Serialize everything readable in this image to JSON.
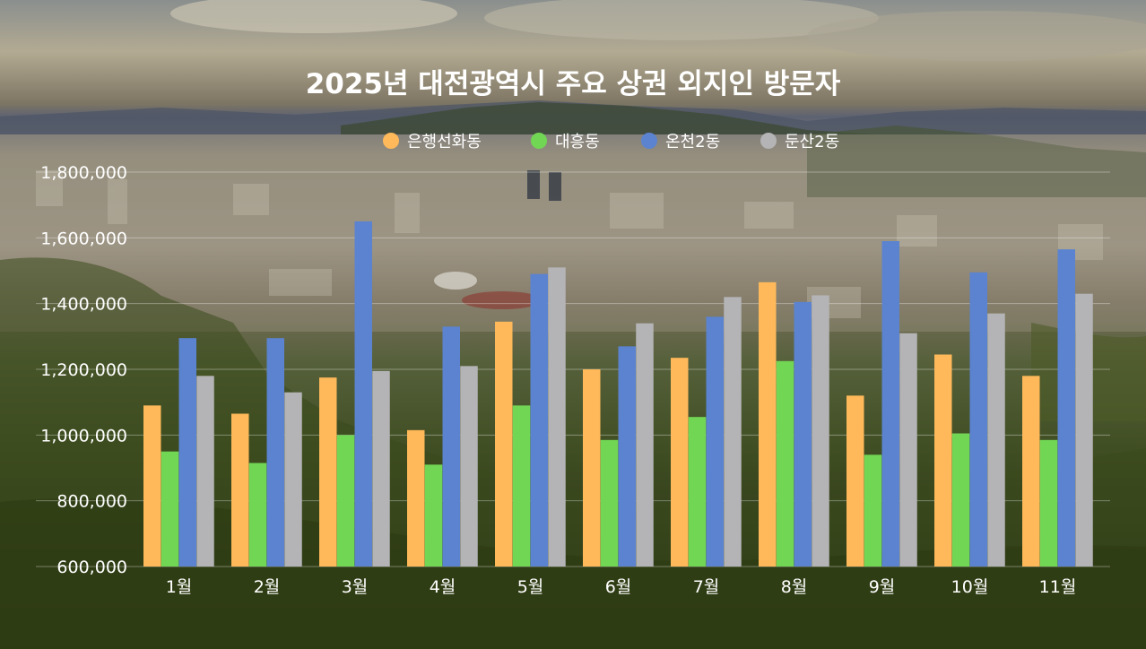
{
  "chart_data": {
    "type": "bar",
    "title": "2025년 대전광역시 주요 상권 외지인 방문자",
    "xlabel": "",
    "ylabel": "",
    "categories": [
      "1월",
      "2월",
      "3월",
      "4월",
      "5월",
      "6월",
      "7월",
      "8월",
      "9월",
      "10월",
      "11월"
    ],
    "series": [
      {
        "name": "은행선화동",
        "color": "#ffb95a",
        "values": [
          1090000,
          1065000,
          1175000,
          1015000,
          1345000,
          1200000,
          1235000,
          1465000,
          1120000,
          1245000,
          1180000
        ]
      },
      {
        "name": "대흥동",
        "color": "#72d655",
        "values": [
          950000,
          915000,
          1000000,
          910000,
          1090000,
          985000,
          1055000,
          1225000,
          940000,
          1005000,
          985000
        ]
      },
      {
        "name": "온천2동",
        "color": "#5b83d0",
        "values": [
          1295000,
          1295000,
          1650000,
          1330000,
          1490000,
          1270000,
          1360000,
          1405000,
          1590000,
          1495000,
          1565000
        ]
      },
      {
        "name": "둔산2동",
        "color": "#b4b4b6",
        "values": [
          1180000,
          1130000,
          1195000,
          1210000,
          1510000,
          1340000,
          1420000,
          1425000,
          1310000,
          1370000,
          1430000
        ]
      }
    ],
    "ylim": [
      600000,
      1800000
    ],
    "yticks": [
      600000,
      800000,
      1000000,
      1200000,
      1400000,
      1600000,
      1800000
    ],
    "ytick_labels": [
      "600,000",
      "800,000",
      "1,000,000",
      "1,200,000",
      "1,400,000",
      "1,600,000",
      "1,800,000"
    ],
    "grid": true,
    "legend_position": "top-center"
  },
  "background": {
    "description_icon": "aerial-city-photo-icon"
  }
}
